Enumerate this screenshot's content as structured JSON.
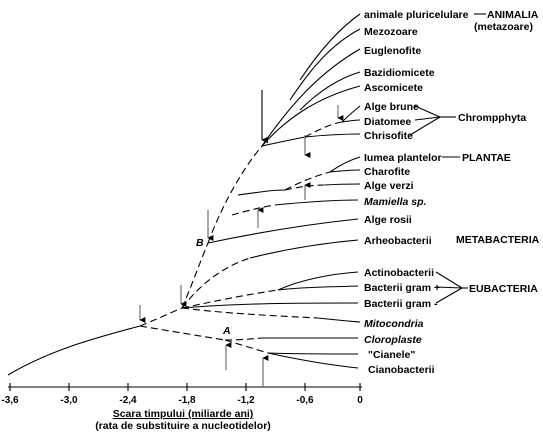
{
  "taxa": {
    "animale": "animale pluricelulare",
    "mezozoare": "Mezozoare",
    "euglenofite": "Euglenofite",
    "bazidiomicete": "Bazidiomicete",
    "ascomicete": "Ascomicete",
    "alge_brune": "Alge brune",
    "diatomee": "Diatomee",
    "chrisofite": "Chrisofite",
    "iumea_plantelor": "Iumea plantelor",
    "charofite": "Charofite",
    "alge_verzi": "Alge verzi",
    "mamiella": "Mamiella sp.",
    "alge_rosii": "Alge rosii",
    "arheobacterii": "Arheobacterii",
    "actinobacterii": "Actinobacterii",
    "gram_plus": "Bacterii gram +",
    "gram_minus": "Bacterii gram -",
    "mitocondria": "Mitocondria",
    "cloroplaste": "Cloroplaste",
    "cianele": "\"Cianele\"",
    "cianobacterii": "Cianobacterii"
  },
  "groups": {
    "animalia": "ANIMALIA",
    "metazoare": "(metazoare)",
    "chromphyta": "Chrompphyta",
    "plantae": "PLANTAE",
    "metabacteria": "METABACTERIA",
    "eubacteria": "EUBACTERIA"
  },
  "markers": {
    "a": "A",
    "b": "B"
  },
  "axis": {
    "ticks": [
      "-3,6",
      "-3,0",
      "-2,4",
      "-1,8",
      "-1,2",
      "-0,6",
      "0"
    ],
    "title": "Scara timpului (miliarde ani)",
    "subtitle": "(rata de substituire a nucleotidelor)"
  }
}
